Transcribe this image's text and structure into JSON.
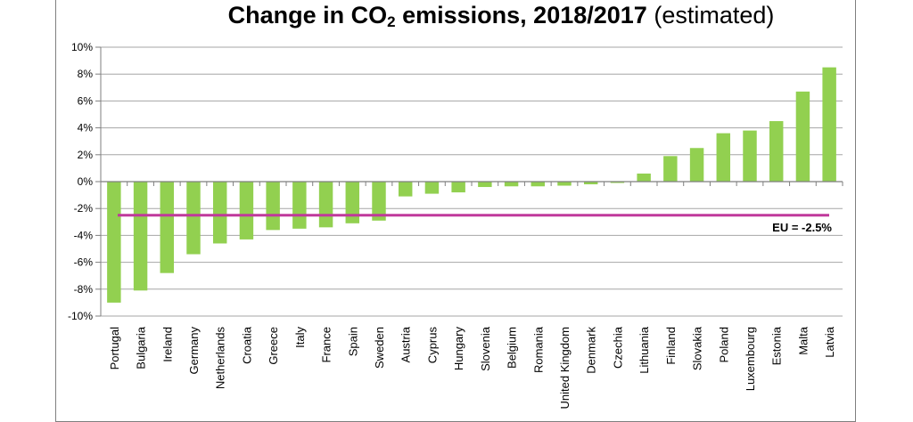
{
  "chart_data": {
    "type": "bar",
    "title_main": "Change in CO",
    "title_sub": "2",
    "title_rest": " emissions, 2018/2017",
    "title_note": "(estimated)",
    "categories": [
      "Portugal",
      "Bulgaria",
      "Ireland",
      "Germany",
      "Netherlands",
      "Croatia",
      "Greece",
      "Italy",
      "France",
      "Spain",
      "Sweden",
      "Austria",
      "Cyprus",
      "Hungary",
      "Slovenia",
      "Belgium",
      "Romania",
      "United Kingdom",
      "Denmark",
      "Czechia",
      "Lithuania",
      "Finland",
      "Slovakia",
      "Poland",
      "Luxembourg",
      "Estonia",
      "Malta",
      "Latvia"
    ],
    "values": [
      -9.0,
      -8.1,
      -6.8,
      -5.4,
      -4.6,
      -4.3,
      -3.6,
      -3.5,
      -3.4,
      -3.1,
      -2.9,
      -1.1,
      -0.9,
      -0.8,
      -0.4,
      -0.35,
      -0.35,
      -0.3,
      -0.2,
      -0.1,
      0.6,
      1.9,
      2.5,
      3.6,
      3.8,
      4.5,
      6.7,
      8.5
    ],
    "ylim": [
      -10,
      10
    ],
    "yticks": [
      10,
      8,
      6,
      4,
      2,
      0,
      -2,
      -4,
      -6,
      -8,
      -10
    ],
    "ytick_labels": [
      "10%",
      "8%",
      "6%",
      "4%",
      "2%",
      "0%",
      "-2%",
      "-4%",
      "-6%",
      "-8%",
      "-10%"
    ],
    "reference_line": {
      "value": -2.5,
      "label": "EU = -2.5%"
    },
    "grid": true,
    "xlabel": "",
    "ylabel": "",
    "colors": {
      "bar": "#92d050",
      "reference": "#c0399b",
      "grid": "#a6a6a6",
      "axis": "#7f7f7f"
    }
  }
}
